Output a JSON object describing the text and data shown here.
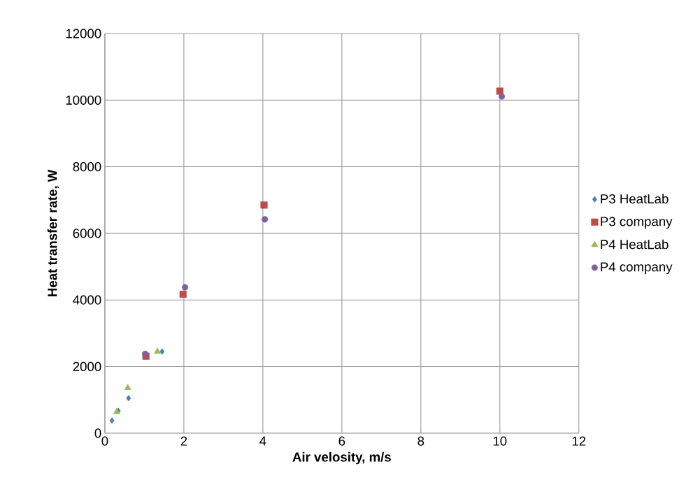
{
  "chart_data": {
    "type": "scatter",
    "xlabel": "Air velosity, m/s",
    "ylabel": "Heat transfer rate, W",
    "xlim": [
      0,
      12
    ],
    "xticks": [
      0,
      2,
      4,
      6,
      8,
      10,
      12
    ],
    "ylim": [
      0,
      12000
    ],
    "yticks": [
      0,
      2000,
      4000,
      6000,
      8000,
      10000,
      12000
    ],
    "grid": true,
    "legend": "right",
    "series": [
      {
        "name": "P3 HeatLab",
        "color": "#4a7ebb",
        "marker": "diamond",
        "x": [
          0.18,
          0.34,
          0.6,
          1.45
        ],
        "values": [
          380,
          670,
          1050,
          2450
        ]
      },
      {
        "name": "P3 company",
        "color": "#be4b48",
        "marker": "square",
        "x": [
          1.04,
          1.98,
          4.03,
          10.0
        ],
        "values": [
          2310,
          4170,
          6850,
          10270
        ]
      },
      {
        "name": "P4 HeatLab",
        "color": "#98b954",
        "marker": "triangle",
        "x": [
          0.3,
          0.58,
          1.33
        ],
        "values": [
          640,
          1360,
          2450
        ]
      },
      {
        "name": "P4 company",
        "color": "#7d60a0",
        "marker": "circle",
        "x": [
          1.02,
          2.03,
          4.05,
          10.05
        ],
        "values": [
          2380,
          4380,
          6420,
          10110
        ]
      }
    ]
  }
}
